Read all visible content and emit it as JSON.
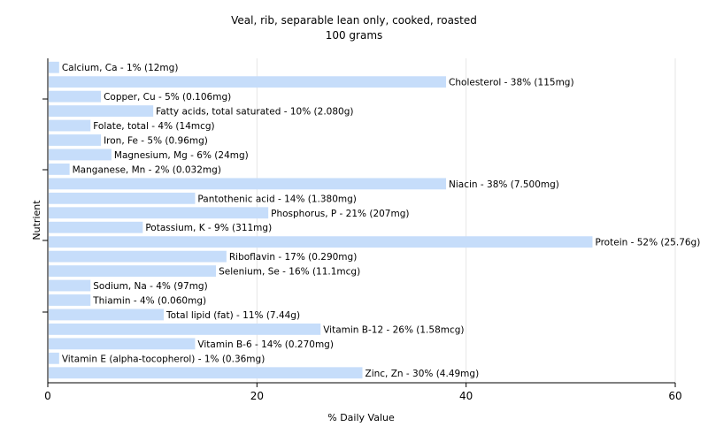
{
  "chart_data": {
    "type": "bar",
    "orientation": "horizontal",
    "title": "Veal, rib, separable lean only, cooked, roasted",
    "subtitle": "100 grams",
    "xlabel": "% Daily Value",
    "ylabel": "Nutrient",
    "xlim": [
      0,
      60
    ],
    "xticks": [
      0,
      20,
      40,
      60
    ],
    "grid": true,
    "bar_color": "#c6ddfa",
    "categories": [
      "Calcium, Ca",
      "Cholesterol",
      "Copper, Cu",
      "Fatty acids, total saturated",
      "Folate, total",
      "Iron, Fe",
      "Magnesium, Mg",
      "Manganese, Mn",
      "Niacin",
      "Pantothenic acid",
      "Phosphorus, P",
      "Potassium, K",
      "Protein",
      "Riboflavin",
      "Selenium, Se",
      "Sodium, Na",
      "Thiamin",
      "Total lipid (fat)",
      "Vitamin B-12",
      "Vitamin B-6",
      "Vitamin E (alpha-tocopherol)",
      "Zinc, Zn"
    ],
    "values": [
      1,
      38,
      5,
      10,
      4,
      5,
      6,
      2,
      38,
      14,
      21,
      9,
      52,
      17,
      16,
      4,
      4,
      11,
      26,
      14,
      1,
      30
    ],
    "labels": [
      "Calcium, Ca - 1% (12mg)",
      "Cholesterol - 38% (115mg)",
      "Copper, Cu - 5% (0.106mg)",
      "Fatty acids, total saturated - 10% (2.080g)",
      "Folate, total - 4% (14mcg)",
      "Iron, Fe - 5% (0.96mg)",
      "Magnesium, Mg - 6% (24mg)",
      "Manganese, Mn - 2% (0.032mg)",
      "Niacin - 38% (7.500mg)",
      "Pantothenic acid - 14% (1.380mg)",
      "Phosphorus, P - 21% (207mg)",
      "Potassium, K - 9% (311mg)",
      "Protein - 52% (25.76g)",
      "Riboflavin - 17% (0.290mg)",
      "Selenium, Se - 16% (11.1mcg)",
      "Sodium, Na - 4% (97mg)",
      "Thiamin - 4% (0.060mg)",
      "Total lipid (fat) - 11% (7.44g)",
      "Vitamin B-12 - 26% (1.58mcg)",
      "Vitamin B-6 - 14% (0.270mg)",
      "Vitamin E (alpha-tocopherol) - 1% (0.36mg)",
      "Zinc, Zn - 30% (4.49mg)"
    ]
  }
}
